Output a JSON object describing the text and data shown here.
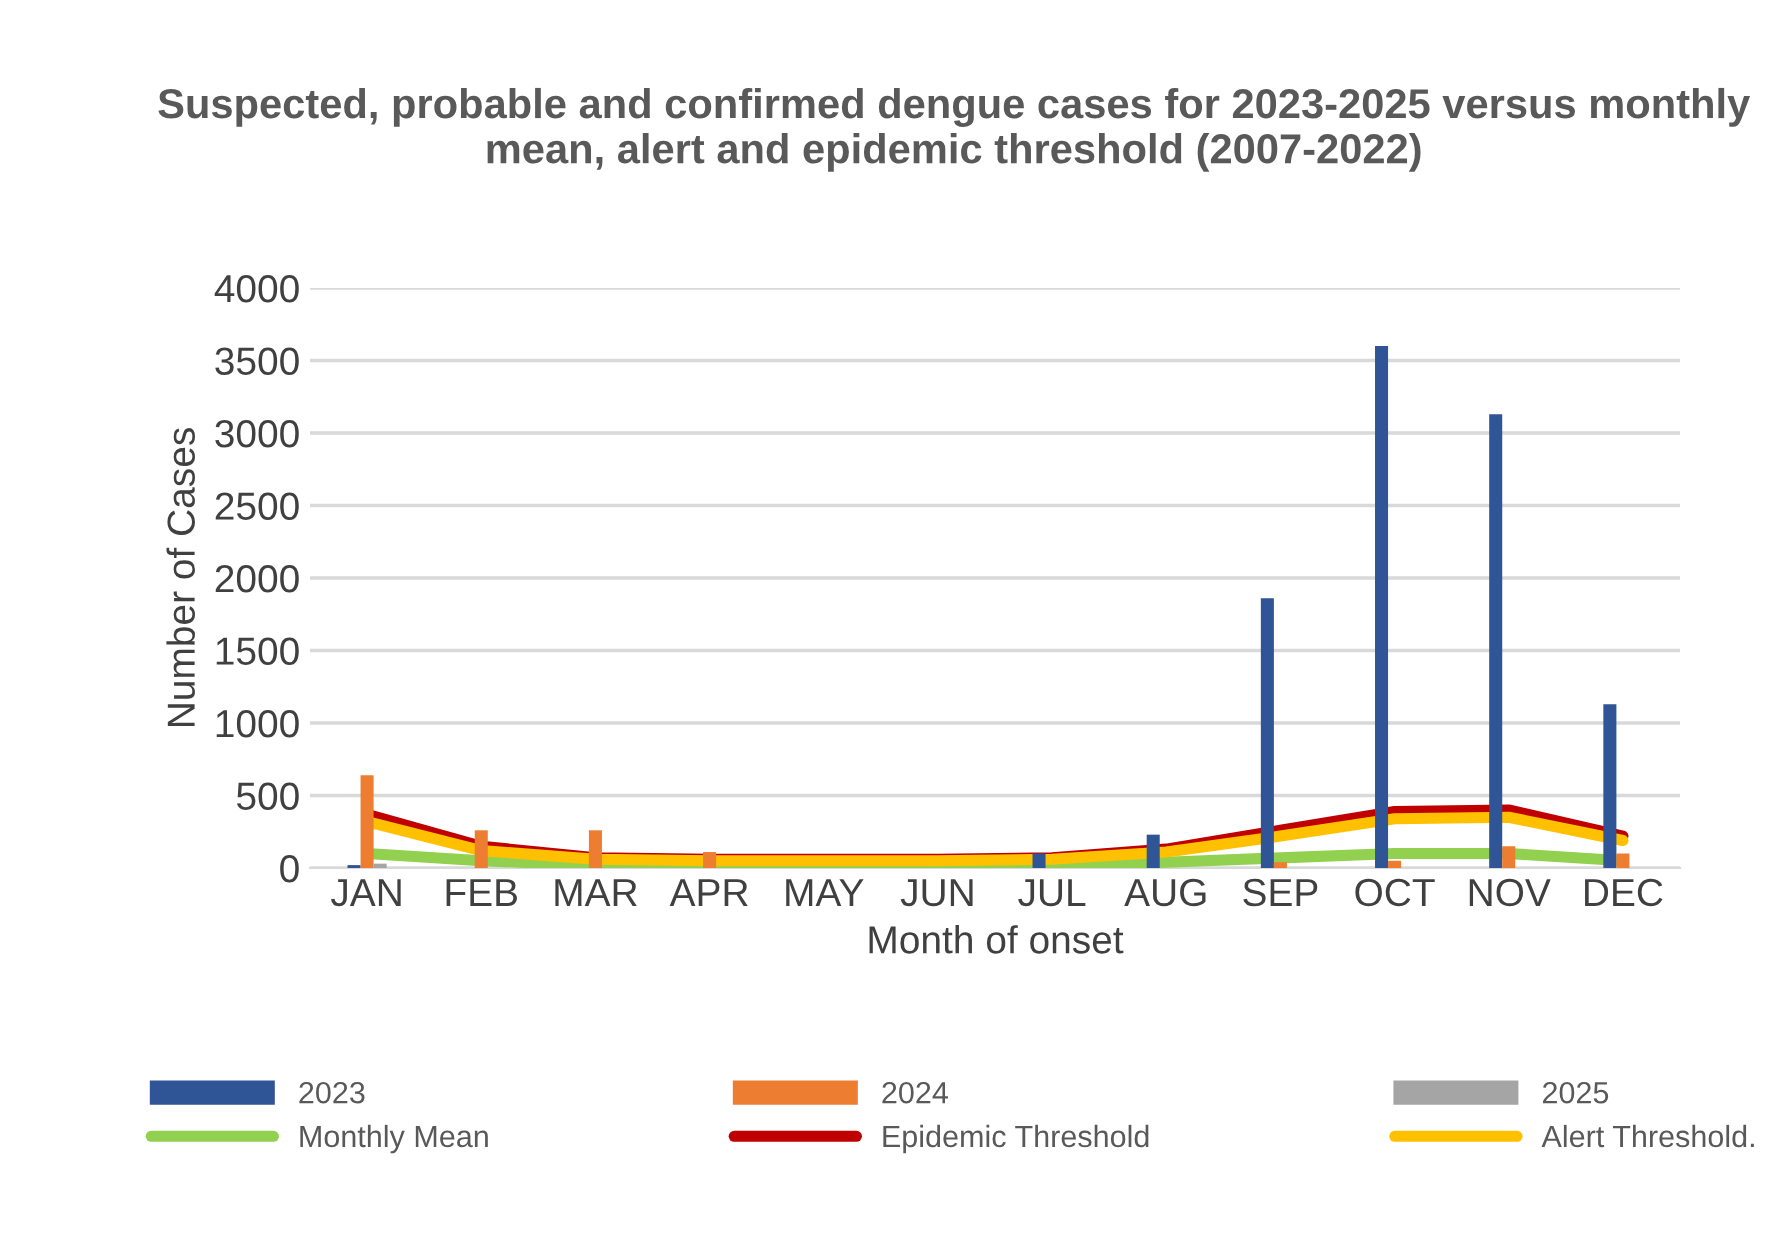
{
  "chart_data": {
    "type": "bar",
    "title": "Suspected, probable and confirmed dengue cases for 2023-2025 versus monthly mean, alert and epidemic threshold (2007-2022)",
    "xlabel": "Month of onset",
    "ylabel": "Number of Cases",
    "categories": [
      "JAN",
      "FEB",
      "MAR",
      "APR",
      "MAY",
      "JUN",
      "JUL",
      "AUG",
      "SEP",
      "OCT",
      "NOV",
      "DEC"
    ],
    "series": [
      {
        "name": "2023",
        "type": "bar",
        "color": "#2f5597",
        "values": [
          20,
          null,
          null,
          null,
          null,
          null,
          100,
          230,
          1860,
          3600,
          3130,
          1130
        ]
      },
      {
        "name": "2024",
        "type": "bar",
        "color": "#ed7d31",
        "values": [
          640,
          260,
          260,
          110,
          null,
          null,
          null,
          null,
          40,
          50,
          150,
          100
        ]
      },
      {
        "name": "2025",
        "type": "bar",
        "color": "#a5a5a5",
        "values": [
          30,
          null,
          null,
          null,
          null,
          null,
          null,
          null,
          null,
          null,
          null,
          null
        ]
      },
      {
        "name": "Monthly Mean",
        "type": "line",
        "color": "#92d050",
        "values": [
          100,
          50,
          20,
          10,
          10,
          10,
          20,
          40,
          70,
          100,
          100,
          50
        ]
      },
      {
        "name": "Epidemic Threshold",
        "type": "line",
        "color": "#c00000",
        "values": [
          370,
          150,
          70,
          60,
          60,
          60,
          70,
          130,
          260,
          390,
          400,
          220
        ]
      },
      {
        "name": "Alert Threshold.",
        "type": "line",
        "color": "#ffc000",
        "values": [
          320,
          120,
          60,
          50,
          50,
          50,
          60,
          110,
          220,
          340,
          350,
          190
        ]
      }
    ],
    "ylim": [
      0,
      4000
    ],
    "yticks": [
      0,
      500,
      1000,
      1500,
      2000,
      2500,
      3000,
      3500,
      4000
    ],
    "grid": "y",
    "legend": "bottom",
    "marker": "none",
    "line_style": "solid"
  }
}
